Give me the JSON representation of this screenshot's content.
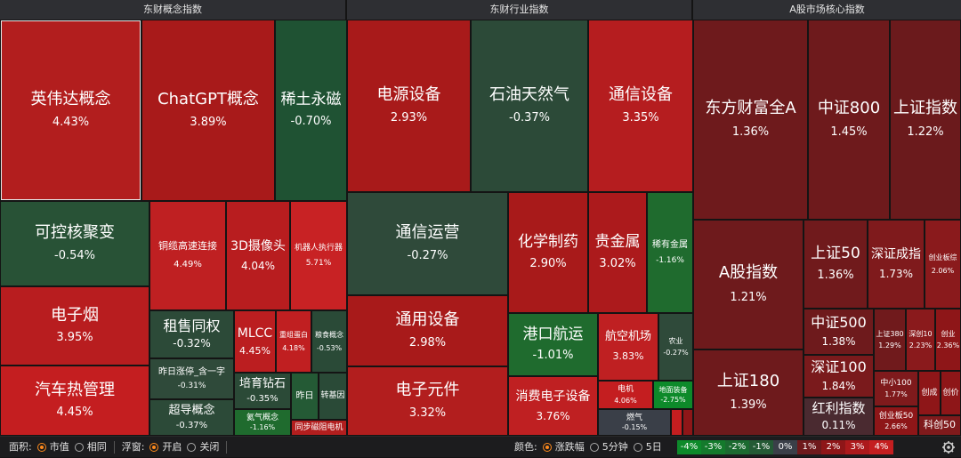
{
  "panels": [
    {
      "title": "东财概念指数"
    },
    {
      "title": "东财行业指数"
    },
    {
      "title": "A股市场核心指数"
    }
  ],
  "tiles": [
    {
      "name": "英伟达概念",
      "pct": "4.43%"
    },
    {
      "name": "ChatGPT概念",
      "pct": "3.89%"
    },
    {
      "name": "稀土永磁",
      "pct": "-0.70%"
    },
    {
      "name": "可控核聚变",
      "pct": "-0.54%"
    },
    {
      "name": "铜缆高速连接",
      "pct": "4.49%"
    },
    {
      "name": "3D摄像头",
      "pct": "4.04%"
    },
    {
      "name": "机器人执行器",
      "pct": "5.71%"
    },
    {
      "name": "电子烟",
      "pct": "3.95%"
    },
    {
      "name": "租售同权",
      "pct": "-0.32%"
    },
    {
      "name": "MLCC",
      "pct": "4.45%"
    },
    {
      "name": "重组蛋白",
      "pct": "4.18%"
    },
    {
      "name": "粮食概念",
      "pct": "-0.53%"
    },
    {
      "name": "昨日涨停_含一字",
      "pct": "-0.31%"
    },
    {
      "name": "超导概念",
      "pct": "-0.37%"
    },
    {
      "name": "培育钻石",
      "pct": "-0.35%"
    },
    {
      "name": "昨日",
      "pct": ""
    },
    {
      "name": "转基因",
      "pct": ""
    },
    {
      "name": "氦气概念",
      "pct": "-1.16%"
    },
    {
      "name": "同步磁阻电机",
      "pct": ""
    },
    {
      "name": "汽车热管理",
      "pct": "4.45%"
    },
    {
      "name": "电源设备",
      "pct": "2.93%"
    },
    {
      "name": "石油天然气",
      "pct": "-0.37%"
    },
    {
      "name": "通信设备",
      "pct": "3.35%"
    },
    {
      "name": "通信运营",
      "pct": "-0.27%"
    },
    {
      "name": "化学制药",
      "pct": "2.90%"
    },
    {
      "name": "贵金属",
      "pct": "3.02%"
    },
    {
      "name": "稀有金属",
      "pct": "-1.16%"
    },
    {
      "name": "通用设备",
      "pct": "2.98%"
    },
    {
      "name": "港口航运",
      "pct": "-1.01%"
    },
    {
      "name": "航空机场",
      "pct": "3.83%"
    },
    {
      "name": "农业",
      "pct": "-0.27%"
    },
    {
      "name": "电子元件",
      "pct": "3.32%"
    },
    {
      "name": "消费电子设备",
      "pct": "3.76%"
    },
    {
      "name": "电机",
      "pct": "4.06%"
    },
    {
      "name": "地面装备",
      "pct": "-2.75%"
    },
    {
      "name": "燃气",
      "pct": "-0.15%"
    },
    {
      "name": "",
      "pct": ""
    },
    {
      "name": "",
      "pct": ""
    },
    {
      "name": "东方财富全A",
      "pct": "1.36%"
    },
    {
      "name": "中证800",
      "pct": "1.45%"
    },
    {
      "name": "上证指数",
      "pct": "1.22%"
    },
    {
      "name": "A股指数",
      "pct": "1.21%"
    },
    {
      "name": "上证50",
      "pct": "1.36%"
    },
    {
      "name": "深证成指",
      "pct": "1.73%"
    },
    {
      "name": "创业板综",
      "pct": "2.06%"
    },
    {
      "name": "中证500",
      "pct": "1.38%"
    },
    {
      "name": "上证380",
      "pct": "1.29%"
    },
    {
      "name": "深创10",
      "pct": "2.23%"
    },
    {
      "name": "创业",
      "pct": "2.36%"
    },
    {
      "name": "上证180",
      "pct": "1.39%"
    },
    {
      "name": "深证100",
      "pct": "1.84%"
    },
    {
      "name": "中小100",
      "pct": "1.77%"
    },
    {
      "name": "创成",
      "pct": ""
    },
    {
      "name": "创价",
      "pct": ""
    },
    {
      "name": "红利指数",
      "pct": "0.11%"
    },
    {
      "name": "创业板50",
      "pct": "2.66%"
    },
    {
      "name": "科创50",
      "pct": ""
    }
  ],
  "bottom_bar": {
    "area_label": "面积:",
    "area_opt1": "市值",
    "area_opt2": "相同",
    "float_label": "浮窗:",
    "float_opt1": "开启",
    "float_opt2": "关闭",
    "color_label": "颜色:",
    "color_opt1": "涨跌幅",
    "color_opt2": "5分钟",
    "color_opt3": "5日"
  },
  "legend": [
    {
      "label": "-4%",
      "color": "#0d8a2a"
    },
    {
      "label": "-3%",
      "color": "#147a2c"
    },
    {
      "label": "-2%",
      "color": "#1b6a30"
    },
    {
      "label": "-1%",
      "color": "#245a35"
    },
    {
      "label": "0%",
      "color": "#3a3f48"
    },
    {
      "label": "1%",
      "color": "#6e1a1c"
    },
    {
      "label": "2%",
      "color": "#8e1618"
    },
    {
      "label": "3%",
      "color": "#ac1a1c"
    },
    {
      "label": "4%",
      "color": "#c41e20"
    }
  ],
  "colors": {
    "selected_tile": "#b21e1e",
    "gear": "#cfcfcf",
    "radio_on": "#ff8a1c"
  }
}
